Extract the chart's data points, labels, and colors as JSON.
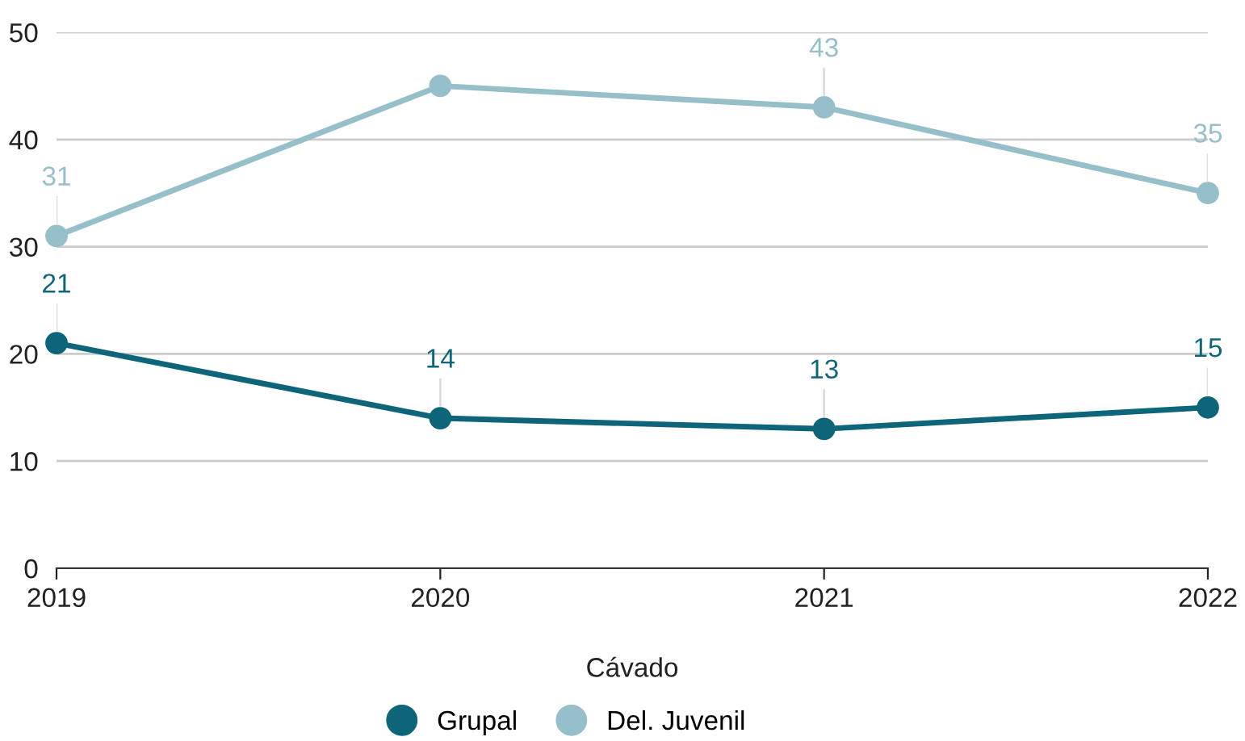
{
  "chart_data": {
    "type": "line",
    "xlabel": "Cávado",
    "categories": [
      "2019",
      "2020",
      "2021",
      "2022"
    ],
    "series": [
      {
        "name": "Grupal",
        "color": "#0e6579",
        "values": [
          21,
          14,
          13,
          15
        ],
        "value_labels": [
          "21",
          "14",
          "13",
          "15"
        ]
      },
      {
        "name": "Del. Juvenil",
        "color": "#97bfca",
        "values": [
          31,
          45,
          43,
          35
        ],
        "value_labels": [
          "31",
          null,
          "43",
          "35"
        ]
      }
    ],
    "ylim": [
      0,
      50
    ],
    "yticks": [
      0,
      10,
      20,
      30,
      40,
      50
    ],
    "grid": "y",
    "legend": "bottom",
    "marker": "circle",
    "line_style": "solid"
  }
}
